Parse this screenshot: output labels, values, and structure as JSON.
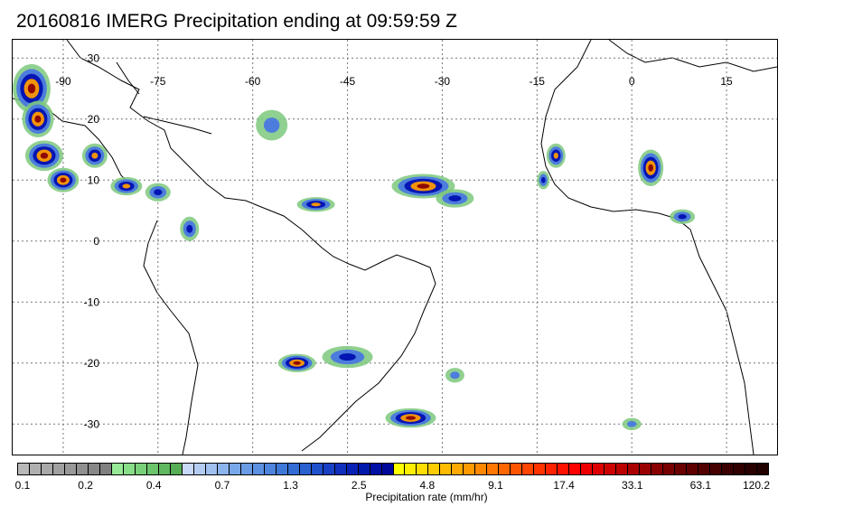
{
  "title": "20160816 IMERG Precipitation ending at 09:59:59 Z",
  "map": {
    "lon_min": -98,
    "lon_max": 23,
    "lat_max": 33,
    "lat_min": -35,
    "grid_lons": [
      -90,
      -75,
      -60,
      -45,
      -30,
      -15,
      0,
      15
    ],
    "grid_lats": [
      30,
      20,
      10,
      0,
      -10,
      -20,
      -30
    ],
    "lon_labels": [
      "-90",
      "-75",
      "-60",
      "-45",
      "-30",
      "-15",
      "0",
      "15"
    ],
    "lat_labels": [
      "30",
      "20",
      "10",
      "0",
      "-10",
      "-20",
      "-30"
    ],
    "rain_systems": [
      {
        "lon": -95,
        "lat": 25,
        "rx": 3.0,
        "ry": 4.0,
        "level": 4
      },
      {
        "lon": -94,
        "lat": 20,
        "rx": 2.5,
        "ry": 3.0,
        "level": 4
      },
      {
        "lon": -93,
        "lat": 14,
        "rx": 3.0,
        "ry": 2.5,
        "level": 4
      },
      {
        "lon": -90,
        "lat": 10,
        "rx": 2.5,
        "ry": 2.0,
        "level": 4
      },
      {
        "lon": -85,
        "lat": 14,
        "rx": 2.0,
        "ry": 2.0,
        "level": 3
      },
      {
        "lon": -80,
        "lat": 9,
        "rx": 2.5,
        "ry": 1.5,
        "level": 3
      },
      {
        "lon": -75,
        "lat": 8,
        "rx": 2.0,
        "ry": 1.5,
        "level": 2
      },
      {
        "lon": -70,
        "lat": 2,
        "rx": 1.5,
        "ry": 2.0,
        "level": 2
      },
      {
        "lon": -57,
        "lat": 19,
        "rx": 2.5,
        "ry": 2.5,
        "level": 1
      },
      {
        "lon": -50,
        "lat": 6,
        "rx": 3.0,
        "ry": 1.2,
        "level": 3
      },
      {
        "lon": -33,
        "lat": 9,
        "rx": 5.0,
        "ry": 2.0,
        "level": 4
      },
      {
        "lon": -28,
        "lat": 7,
        "rx": 3.0,
        "ry": 1.5,
        "level": 2
      },
      {
        "lon": -12,
        "lat": 14,
        "rx": 1.5,
        "ry": 2.0,
        "level": 3
      },
      {
        "lon": -14,
        "lat": 10,
        "rx": 1.0,
        "ry": 1.5,
        "level": 2
      },
      {
        "lon": 3,
        "lat": 12,
        "rx": 2.0,
        "ry": 3.0,
        "level": 4
      },
      {
        "lon": 8,
        "lat": 4,
        "rx": 2.0,
        "ry": 1.2,
        "level": 2
      },
      {
        "lon": -53,
        "lat": -20,
        "rx": 3.0,
        "ry": 1.5,
        "level": 4
      },
      {
        "lon": -45,
        "lat": -19,
        "rx": 4.0,
        "ry": 1.8,
        "level": 2
      },
      {
        "lon": -35,
        "lat": -29,
        "rx": 4.0,
        "ry": 1.6,
        "level": 4
      },
      {
        "lon": -28,
        "lat": -22,
        "rx": 1.5,
        "ry": 1.2,
        "level": 1
      },
      {
        "lon": 0,
        "lat": -30,
        "rx": 1.5,
        "ry": 1.0,
        "level": 1
      }
    ]
  },
  "colorbar": {
    "colors": [
      "#b8b8b8",
      "#b0b0b0",
      "#a8a8a8",
      "#a0a0a0",
      "#989898",
      "#909090",
      "#888888",
      "#808080",
      "#98e898",
      "#88dd88",
      "#78d078",
      "#6cc46c",
      "#60b860",
      "#56ad56",
      "#c8d8f8",
      "#b4ccf4",
      "#a0c0f0",
      "#8cb4ec",
      "#78a8e8",
      "#6a9ce4",
      "#5c90e0",
      "#4e84dc",
      "#4078d8",
      "#346cd4",
      "#2a60d0",
      "#2050cc",
      "#1840c4",
      "#1030bc",
      "#0820b4",
      "#0018ac",
      "#0010a4",
      "#00089c",
      "#ffff00",
      "#ffee00",
      "#ffdd00",
      "#ffcc00",
      "#ffbb00",
      "#ffaa00",
      "#ff9900",
      "#ff8800",
      "#ff7700",
      "#ff6600",
      "#ff5500",
      "#ff4400",
      "#ff3300",
      "#ff2200",
      "#ff1100",
      "#ff0000",
      "#ee0000",
      "#dd0000",
      "#cc0000",
      "#bb0000",
      "#aa0000",
      "#990000",
      "#880000",
      "#770000",
      "#6a0000",
      "#5e0000",
      "#520000",
      "#460000",
      "#3a0000",
      "#300000",
      "#280000",
      "#200000"
    ],
    "labels": [
      "0.1",
      "0.2",
      "0.4",
      "0.7",
      "1.3",
      "2.5",
      "4.8",
      "9.1",
      "17.4",
      "33.1",
      "63.1",
      "120.2"
    ],
    "title": "Precipitation rate (mm/hr)"
  }
}
